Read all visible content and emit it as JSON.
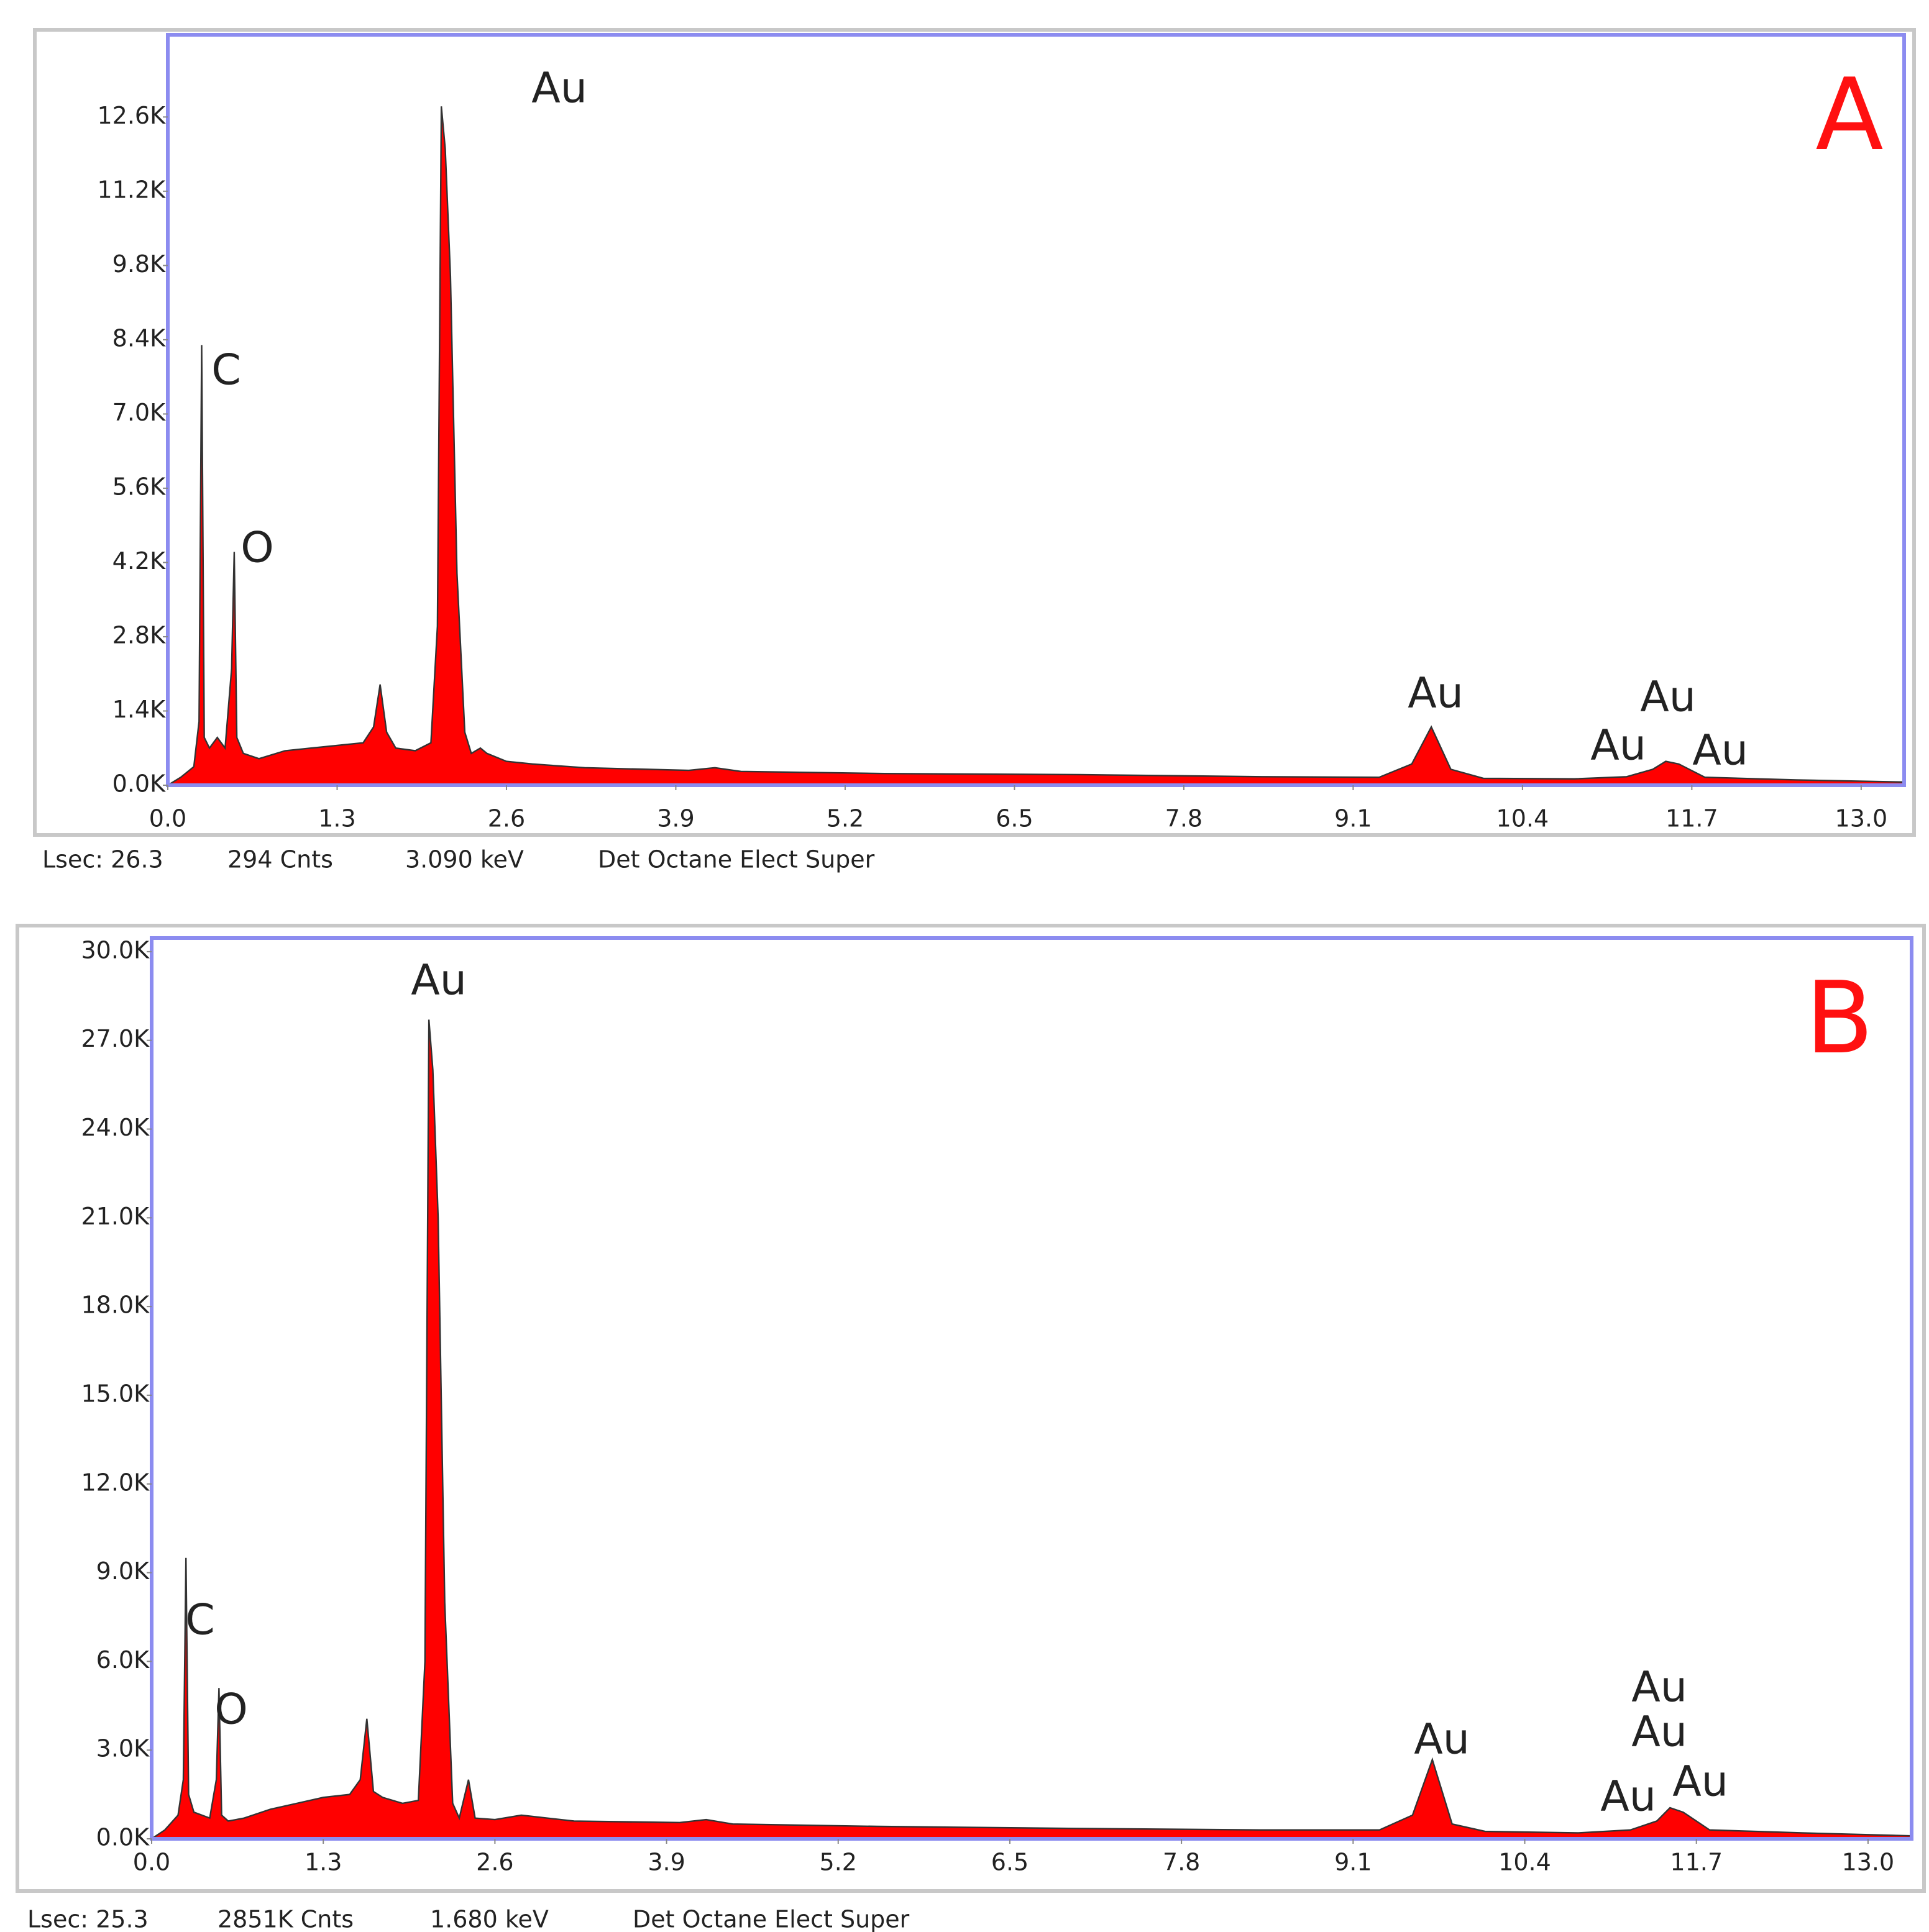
{
  "chart_data": [
    {
      "type": "area",
      "panel_label": "A",
      "color": "#ff0000",
      "outline": "#333333",
      "x": [
        0,
        0.1,
        0.2,
        0.24,
        0.26,
        0.28,
        0.32,
        0.38,
        0.44,
        0.49,
        0.51,
        0.53,
        0.58,
        0.7,
        0.9,
        1.1,
        1.3,
        1.5,
        1.58,
        1.63,
        1.68,
        1.75,
        1.9,
        2.02,
        2.07,
        2.1,
        2.13,
        2.17,
        2.22,
        2.28,
        2.33,
        2.4,
        2.45,
        2.6,
        2.8,
        3.2,
        4.0,
        4.2,
        4.4,
        5.5,
        7.0,
        8.4,
        9.3,
        9.55,
        9.7,
        9.85,
        10.1,
        10.8,
        11.2,
        11.4,
        11.5,
        11.6,
        11.8,
        12.5,
        13.33
      ],
      "values": [
        0,
        150,
        350,
        1200,
        8300,
        900,
        700,
        900,
        700,
        2200,
        4400,
        900,
        600,
        500,
        650,
        700,
        750,
        800,
        1100,
        1900,
        1000,
        700,
        650,
        800,
        3000,
        12800,
        12000,
        9600,
        4000,
        1000,
        600,
        700,
        600,
        450,
        400,
        330,
        280,
        330,
        260,
        220,
        200,
        160,
        150,
        400,
        1100,
        300,
        130,
        120,
        160,
        300,
        450,
        400,
        150,
        100,
        60
      ],
      "xlim": [
        0,
        13.33
      ],
      "ylim": [
        0,
        14150
      ],
      "xticks": [
        {
          "value": 0,
          "label": "0.0"
        },
        1.3,
        2.6,
        3.9,
        5.2,
        6.5,
        7.8,
        9.1,
        10.4,
        11.7,
        {
          "value": 13,
          "label": "13.0"
        }
      ],
      "yticks": [
        {
          "value": 0,
          "label": "0.0K"
        },
        {
          "value": 1400,
          "label": "1.4K"
        },
        {
          "value": 2800,
          "label": "2.8K"
        },
        {
          "value": 4200,
          "label": "4.2K"
        },
        {
          "value": 5600,
          "label": "5.6K"
        },
        {
          "value": 7000,
          "label": "7.0K"
        },
        {
          "value": 8400,
          "label": "8.4K"
        },
        {
          "value": 9800,
          "label": "9.8K"
        },
        {
          "value": 11200,
          "label": "11.2K"
        },
        {
          "value": 12600,
          "label": "12.6K"
        }
      ],
      "annotations": [
        "Au",
        "C",
        "O",
        "Au",
        "Au",
        "Au",
        "Au"
      ],
      "footer": [
        "Lsec: 26.3",
        "294 Cnts",
        "3.090 keV",
        "Det Octane Elect Super"
      ]
    },
    {
      "type": "area",
      "panel_label": "B",
      "color": "#ff0000",
      "outline": "#333333",
      "x": [
        0,
        0.1,
        0.2,
        0.24,
        0.26,
        0.28,
        0.32,
        0.38,
        0.44,
        0.49,
        0.51,
        0.53,
        0.58,
        0.7,
        0.9,
        1.1,
        1.3,
        1.5,
        1.58,
        1.63,
        1.68,
        1.75,
        1.9,
        2.02,
        2.07,
        2.1,
        2.13,
        2.17,
        2.22,
        2.28,
        2.33,
        2.4,
        2.45,
        2.6,
        2.8,
        3.2,
        4.0,
        4.2,
        4.4,
        5.5,
        7.0,
        8.4,
        9.3,
        9.55,
        9.7,
        9.85,
        10.1,
        10.8,
        11.2,
        11.4,
        11.5,
        11.6,
        11.8,
        12.5,
        13.33
      ],
      "values": [
        0,
        300,
        800,
        2000,
        9500,
        1500,
        900,
        800,
        700,
        2000,
        5100,
        800,
        600,
        700,
        1000,
        1200,
        1400,
        1500,
        2000,
        4060,
        1600,
        1400,
        1200,
        1300,
        6000,
        27700,
        26000,
        21000,
        8000,
        1200,
        700,
        2000,
        700,
        650,
        800,
        600,
        550,
        650,
        500,
        420,
        350,
        300,
        300,
        800,
        2680,
        500,
        250,
        200,
        300,
        600,
        1050,
        900,
        300,
        200,
        100
      ],
      "xlim": [
        0,
        13.33
      ],
      "ylim": [
        0,
        30460
      ],
      "xticks": [
        {
          "value": 0,
          "label": "0.0"
        },
        1.3,
        2.6,
        3.9,
        5.2,
        6.5,
        7.8,
        9.1,
        10.4,
        11.7,
        {
          "value": 13,
          "label": "13.0"
        }
      ],
      "yticks": [
        {
          "value": 0,
          "label": "0.0K"
        },
        {
          "value": 3000,
          "label": "3.0K"
        },
        {
          "value": 6000,
          "label": "6.0K"
        },
        {
          "value": 9000,
          "label": "9.0K"
        },
        {
          "value": 12000,
          "label": "12.0K"
        },
        {
          "value": 15000,
          "label": "15.0K"
        },
        {
          "value": 18000,
          "label": "18.0K"
        },
        {
          "value": 21000,
          "label": "21.0K"
        },
        {
          "value": 24000,
          "label": "24.0K"
        },
        {
          "value": 27000,
          "label": "27.0K"
        },
        {
          "value": 30000,
          "label": "30.0K"
        }
      ],
      "annotations": [
        "Au",
        "C",
        "O",
        "Au",
        "Au",
        "Au",
        "Au",
        "Au"
      ],
      "footer": [
        "Lsec: 25.3",
        "2851K Cnts",
        "1.680 keV",
        "Det Octane Elect Super"
      ]
    }
  ]
}
